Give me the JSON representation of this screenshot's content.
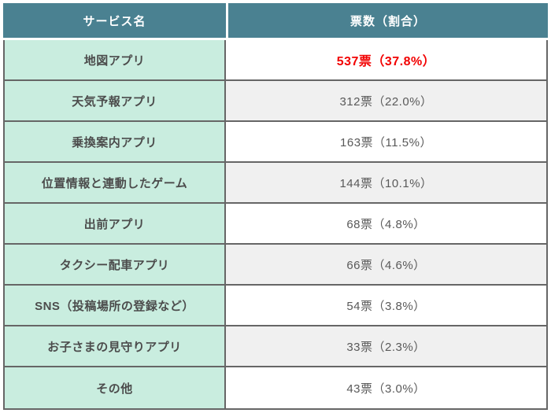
{
  "colors": {
    "header_bg": "#4a8191",
    "header_text": "#ffffff",
    "service_cell_bg": "#c9eddf",
    "votes_cell_bg_odd": "#f0f0f0",
    "votes_cell_bg_even": "#ffffff",
    "border": "#666666",
    "service_text": "#4c4c4c",
    "votes_text": "#595959",
    "highlight_text": "#f20000"
  },
  "table": {
    "headers": [
      "サービス名",
      "票数（割合）"
    ],
    "rows": [
      {
        "service": "地図アプリ",
        "votes": "537票（37.8%）",
        "highlight": true
      },
      {
        "service": "天気予報アプリ",
        "votes": "312票（22.0%）",
        "highlight": false
      },
      {
        "service": "乗換案内アプリ",
        "votes": "163票（11.5%）",
        "highlight": false
      },
      {
        "service": "位置情報と連動したゲーム",
        "votes": "144票（10.1%）",
        "highlight": false
      },
      {
        "service": "出前アプリ",
        "votes": "68票（4.8%）",
        "highlight": false
      },
      {
        "service": "タクシー配車アプリ",
        "votes": "66票（4.6%）",
        "highlight": false
      },
      {
        "service": "SNS（投稿場所の登録など）",
        "votes": "54票（3.8%）",
        "highlight": false
      },
      {
        "service": "お子さまの見守りアプリ",
        "votes": "33票（2.3%）",
        "highlight": false
      },
      {
        "service": "その他",
        "votes": "43票（3.0%）",
        "highlight": false
      }
    ]
  },
  "chart_data": {
    "type": "table",
    "title": "",
    "columns": [
      "サービス名",
      "票数（割合）"
    ],
    "categories": [
      "地図アプリ",
      "天気予報アプリ",
      "乗換案内アプリ",
      "位置情報と連動したゲーム",
      "出前アプリ",
      "タクシー配車アプリ",
      "SNS（投稿場所の登録など）",
      "お子さまの見守りアプリ",
      "その他"
    ],
    "series": [
      {
        "name": "票数",
        "values": [
          537,
          312,
          163,
          144,
          68,
          66,
          54,
          33,
          43
        ]
      },
      {
        "name": "割合(%)",
        "values": [
          37.8,
          22.0,
          11.5,
          10.1,
          4.8,
          4.6,
          3.8,
          2.3,
          3.0
        ]
      }
    ],
    "highlighted_row": "地図アプリ",
    "layout": {
      "grid": "full-borders",
      "header_position": "top"
    }
  }
}
